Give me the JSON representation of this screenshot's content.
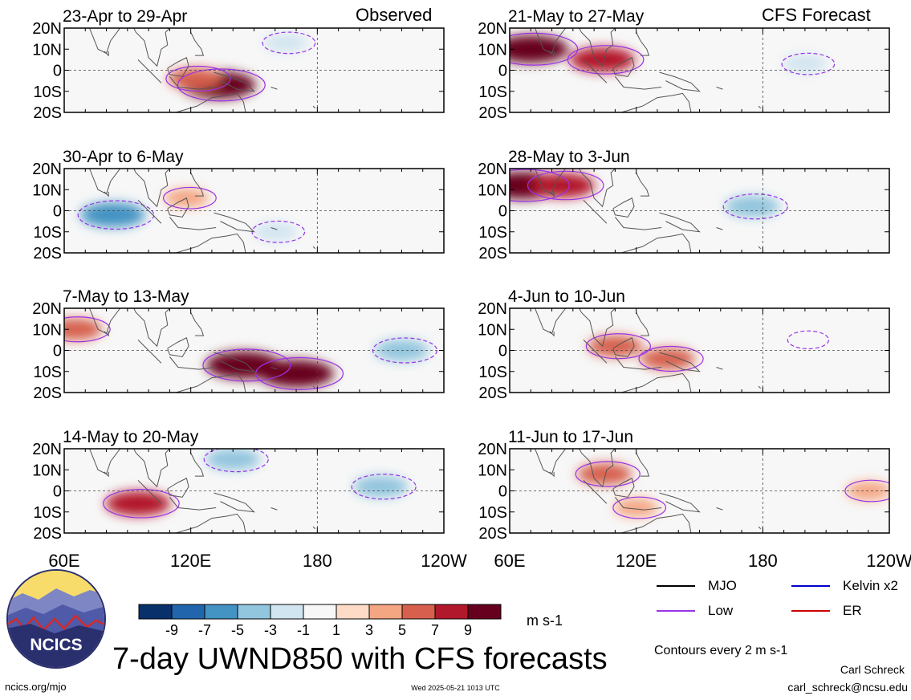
{
  "figure": {
    "title": "7-day UWND850 with CFS forecasts",
    "url": "ncics.org/mjo",
    "timestamp": "Wed 2025-05-21 1013 UTC",
    "author": "Carl Schreck",
    "email": "carl_schreck@ncsu.edu",
    "contour_note": "Contours every 2 m s-1",
    "units": "m s-1",
    "logo_text": "NCICS"
  },
  "columns": {
    "observed_label": "Observed",
    "forecast_label": "CFS Forecast"
  },
  "legend": [
    {
      "label": "MJO",
      "color": "#000000"
    },
    {
      "label": "Kelvin x2",
      "color": "#0000cc"
    },
    {
      "label": "Low",
      "color": "#9a32e6"
    },
    {
      "label": "ER",
      "color": "#cc0000"
    }
  ],
  "colorbar": {
    "labels": [
      "-9",
      "-7",
      "-5",
      "-3",
      "-1",
      "1",
      "3",
      "5",
      "7",
      "9"
    ],
    "colors": [
      "#08306b",
      "#2166ac",
      "#4393c3",
      "#92c5de",
      "#d1e5f0",
      "#f7f7f7",
      "#fddbc7",
      "#f4a582",
      "#d6604d",
      "#b2182b",
      "#67001f"
    ]
  },
  "chart_data": {
    "type": "heatmap",
    "variable": "850-hPa zonal wind anomaly",
    "units": "m s-1",
    "x_ticks": [
      "60E",
      "120E",
      "180",
      "120W"
    ],
    "y_ticks": [
      "20N",
      "10N",
      "0",
      "10S",
      "20S"
    ],
    "xlim": [
      60,
      240
    ],
    "ylim": [
      -20,
      20
    ],
    "contour_interval": 2,
    "panels": [
      {
        "column": "Observed",
        "label": "23-Apr to 29-Apr",
        "features": [
          {
            "lon": 133,
            "lat": -7,
            "value": 9
          },
          {
            "lon": 122,
            "lat": -4,
            "value": 5
          },
          {
            "lon": 165,
            "lat": 13,
            "value": -3
          }
        ]
      },
      {
        "column": "Observed",
        "label": "30-Apr to 6-May",
        "features": [
          {
            "lon": 83,
            "lat": -2,
            "value": -7
          },
          {
            "lon": 160,
            "lat": -10,
            "value": -3
          },
          {
            "lon": 118,
            "lat": 6,
            "value": 3
          }
        ]
      },
      {
        "column": "Observed",
        "label": "7-May to 13-May",
        "features": [
          {
            "lon": 170,
            "lat": -11,
            "value": 9
          },
          {
            "lon": 145,
            "lat": -7,
            "value": 9
          },
          {
            "lon": 65,
            "lat": 10,
            "value": 5
          },
          {
            "lon": 220,
            "lat": 0,
            "value": -5
          }
        ]
      },
      {
        "column": "Observed",
        "label": "14-May to 20-May",
        "features": [
          {
            "lon": 95,
            "lat": -6,
            "value": 7
          },
          {
            "lon": 210,
            "lat": 2,
            "value": -5
          },
          {
            "lon": 140,
            "lat": 15,
            "value": -5
          }
        ]
      },
      {
        "column": "CFS Forecast",
        "label": "21-May to 27-May",
        "features": [
          {
            "lon": 70,
            "lat": 10,
            "value": 9
          },
          {
            "lon": 104,
            "lat": 5,
            "value": 7
          },
          {
            "lon": 200,
            "lat": 3,
            "value": -3
          }
        ]
      },
      {
        "column": "CFS Forecast",
        "label": "28-May to 3-Jun",
        "features": [
          {
            "lon": 66,
            "lat": 12,
            "value": 9
          },
          {
            "lon": 85,
            "lat": 12,
            "value": 7
          },
          {
            "lon": 175,
            "lat": 2,
            "value": -5
          }
        ]
      },
      {
        "column": "CFS Forecast",
        "label": "4-Jun to 10-Jun",
        "features": [
          {
            "lon": 110,
            "lat": 2,
            "value": 5
          },
          {
            "lon": 135,
            "lat": -4,
            "value": 5
          },
          {
            "lon": 200,
            "lat": 5,
            "value": -1
          }
        ]
      },
      {
        "column": "CFS Forecast",
        "label": "11-Jun to 17-Jun",
        "features": [
          {
            "lon": 105,
            "lat": 8,
            "value": 5
          },
          {
            "lon": 120,
            "lat": -8,
            "value": 3
          },
          {
            "lon": 230,
            "lat": 0,
            "value": 3
          }
        ]
      }
    ]
  }
}
